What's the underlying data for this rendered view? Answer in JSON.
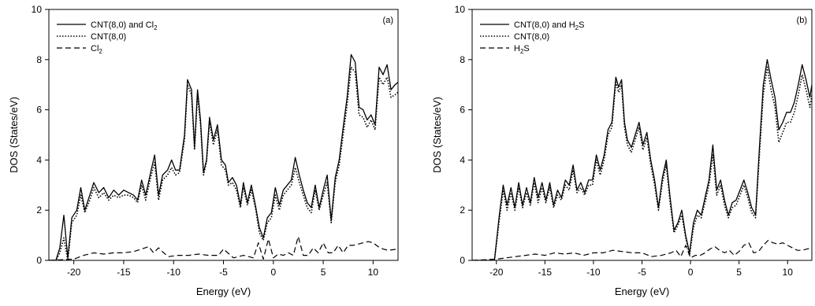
{
  "chart_data": [
    {
      "type": "line",
      "panel_tag": "(a)",
      "xlabel": "Energy (eV)",
      "ylabel": "DOS (States/eV)",
      "xlim": [
        -22.5,
        12.5
      ],
      "ylim": [
        0,
        10
      ],
      "xticks": [
        -20,
        -15,
        -10,
        -5,
        0,
        5,
        10
      ],
      "yticks": [
        0,
        2,
        4,
        6,
        8,
        10
      ],
      "legend_position": "top-left",
      "series": [
        {
          "name": "CNT(8,0) and Cl",
          "name_sub": "2",
          "style": "solid",
          "x": [
            -22.5,
            -21.8,
            -21.4,
            -21.0,
            -20.6,
            -20.2,
            -19.7,
            -19.3,
            -18.9,
            -18.4,
            -18.0,
            -17.5,
            -17.0,
            -16.5,
            -16.0,
            -15.5,
            -15.0,
            -14.5,
            -14.0,
            -13.6,
            -13.2,
            -12.8,
            -12.3,
            -11.9,
            -11.5,
            -11.1,
            -10.6,
            -10.2,
            -9.8,
            -9.4,
            -8.9,
            -8.6,
            -8.2,
            -7.9,
            -7.6,
            -7.3,
            -7.0,
            -6.7,
            -6.4,
            -6.0,
            -5.6,
            -5.2,
            -4.8,
            -4.5,
            -4.1,
            -3.7,
            -3.3,
            -3.0,
            -2.6,
            -2.2,
            -1.8,
            -1.4,
            -1.0,
            -0.6,
            -0.2,
            0.2,
            0.6,
            1.0,
            1.4,
            1.8,
            2.2,
            2.6,
            3.0,
            3.4,
            3.8,
            4.2,
            4.6,
            5.0,
            5.4,
            5.8,
            6.2,
            6.6,
            7.0,
            7.4,
            7.8,
            8.2,
            8.6,
            9.0,
            9.4,
            9.8,
            10.2,
            10.6,
            11.0,
            11.4,
            11.8,
            12.2,
            12.5
          ],
          "y": [
            0,
            0,
            0.5,
            1.8,
            0.1,
            1.7,
            2.0,
            2.9,
            2.0,
            2.6,
            3.1,
            2.7,
            2.9,
            2.5,
            2.8,
            2.6,
            2.8,
            2.7,
            2.6,
            2.4,
            3.2,
            2.6,
            3.5,
            4.2,
            2.6,
            3.4,
            3.6,
            4.0,
            3.6,
            3.6,
            5.0,
            7.2,
            6.8,
            4.5,
            6.8,
            5.6,
            3.5,
            4.0,
            5.7,
            4.8,
            5.4,
            4.0,
            3.8,
            3.1,
            3.3,
            3.0,
            2.2,
            3.1,
            2.3,
            3.0,
            2.2,
            1.3,
            0.9,
            1.7,
            1.9,
            2.9,
            2.2,
            2.8,
            3.0,
            3.2,
            4.1,
            3.4,
            2.8,
            2.3,
            2.1,
            3.0,
            2.1,
            2.8,
            3.4,
            1.6,
            3.3,
            4.0,
            5.3,
            6.5,
            8.2,
            7.9,
            6.1,
            6.0,
            5.6,
            5.8,
            5.4,
            7.7,
            7.4,
            7.8,
            6.8,
            7.0,
            7.1
          ]
        },
        {
          "name": "CNT(8,0)",
          "style": "dotted",
          "x": [
            -22.5,
            -21.8,
            -21.4,
            -21.0,
            -20.6,
            -20.2,
            -19.7,
            -19.3,
            -18.9,
            -18.4,
            -18.0,
            -17.5,
            -17.0,
            -16.5,
            -16.0,
            -15.5,
            -15.0,
            -14.5,
            -14.0,
            -13.6,
            -13.2,
            -12.8,
            -12.3,
            -11.9,
            -11.5,
            -11.1,
            -10.6,
            -10.2,
            -9.8,
            -9.4,
            -8.9,
            -8.6,
            -8.2,
            -7.9,
            -7.6,
            -7.3,
            -7.0,
            -6.7,
            -6.4,
            -6.0,
            -5.6,
            -5.2,
            -4.8,
            -4.5,
            -4.1,
            -3.7,
            -3.3,
            -3.0,
            -2.6,
            -2.2,
            -1.8,
            -1.4,
            -1.0,
            -0.6,
            -0.2,
            0.2,
            0.6,
            1.0,
            1.4,
            1.8,
            2.2,
            2.6,
            3.0,
            3.4,
            3.8,
            4.2,
            4.6,
            5.0,
            5.4,
            5.8,
            6.2,
            6.6,
            7.0,
            7.4,
            7.8,
            8.2,
            8.6,
            9.0,
            9.4,
            9.8,
            10.2,
            10.6,
            11.0,
            11.4,
            11.8,
            12.2,
            12.5
          ],
          "y": [
            0,
            0,
            0.3,
            0.9,
            0.0,
            1.5,
            1.8,
            2.6,
            1.9,
            2.4,
            2.9,
            2.5,
            2.7,
            2.4,
            2.6,
            2.5,
            2.6,
            2.6,
            2.5,
            2.3,
            3.0,
            2.4,
            3.3,
            3.9,
            2.4,
            3.2,
            3.4,
            3.7,
            3.4,
            3.5,
            4.8,
            7.0,
            6.6,
            4.4,
            6.6,
            5.4,
            3.4,
            3.9,
            5.5,
            4.6,
            5.2,
            3.8,
            3.6,
            3.0,
            3.1,
            2.8,
            2.1,
            2.9,
            2.2,
            2.8,
            2.1,
            1.1,
            0.8,
            1.5,
            1.7,
            2.6,
            2.0,
            2.6,
            2.8,
            3.0,
            3.7,
            3.1,
            2.6,
            2.1,
            1.9,
            2.8,
            2.0,
            2.6,
            3.1,
            1.5,
            3.1,
            3.8,
            5.0,
            6.2,
            7.7,
            7.5,
            5.8,
            5.7,
            5.3,
            5.6,
            5.2,
            7.3,
            7.0,
            7.3,
            6.5,
            6.6,
            6.7
          ]
        },
        {
          "name": "Cl",
          "name_sub": "2",
          "style": "dashed",
          "x": [
            -22.5,
            -20.0,
            -19.0,
            -18.0,
            -17.0,
            -16.0,
            -15.0,
            -14.0,
            -13.2,
            -12.5,
            -12.0,
            -11.5,
            -11.0,
            -10.5,
            -9.5,
            -8.5,
            -7.5,
            -6.5,
            -5.5,
            -5.0,
            -4.0,
            -3.0,
            -2.0,
            -1.5,
            -1.0,
            -0.5,
            0.0,
            0.5,
            1.0,
            1.5,
            2.0,
            2.5,
            3.0,
            3.5,
            4.0,
            4.5,
            5.0,
            5.5,
            6.0,
            6.5,
            7.0,
            7.5,
            8.0,
            8.5,
            9.0,
            9.5,
            10.0,
            10.5,
            11.0,
            11.5,
            12.5
          ],
          "y": [
            0,
            0.05,
            0.2,
            0.3,
            0.25,
            0.3,
            0.3,
            0.35,
            0.45,
            0.55,
            0.3,
            0.5,
            0.3,
            0.15,
            0.2,
            0.2,
            0.25,
            0.2,
            0.2,
            0.45,
            0.1,
            0.2,
            0.1,
            0.7,
            0.05,
            0.85,
            0.1,
            0.25,
            0.2,
            0.3,
            0.2,
            0.95,
            0.2,
            0.2,
            0.5,
            0.3,
            0.7,
            0.3,
            0.3,
            0.6,
            0.3,
            0.6,
            0.6,
            0.65,
            0.7,
            0.75,
            0.7,
            0.55,
            0.45,
            0.4,
            0.45
          ]
        }
      ]
    },
    {
      "type": "line",
      "panel_tag": "(b)",
      "xlabel": "Energy (eV)",
      "ylabel": "DOS (States/eV)",
      "xlim": [
        -22.5,
        12.5
      ],
      "ylim": [
        0,
        10
      ],
      "xticks": [
        -20,
        -15,
        -10,
        -5,
        0,
        5,
        10
      ],
      "yticks": [
        0,
        2,
        4,
        6,
        8,
        10
      ],
      "legend_position": "top-left",
      "series": [
        {
          "name": "CNT(8,0) and H",
          "name_sub": "2",
          "name_tail": "S",
          "style": "solid",
          "x": [
            -22.5,
            -20.2,
            -19.7,
            -19.3,
            -18.9,
            -18.5,
            -18.1,
            -17.7,
            -17.3,
            -16.9,
            -16.5,
            -16.1,
            -15.7,
            -15.3,
            -14.9,
            -14.5,
            -14.1,
            -13.7,
            -13.3,
            -12.9,
            -12.5,
            -12.1,
            -11.7,
            -11.3,
            -10.9,
            -10.5,
            -10.1,
            -9.7,
            -9.3,
            -8.9,
            -8.5,
            -8.1,
            -7.7,
            -7.4,
            -7.1,
            -6.8,
            -6.5,
            -6.1,
            -5.7,
            -5.3,
            -4.9,
            -4.5,
            -4.1,
            -3.7,
            -3.3,
            -2.9,
            -2.5,
            -2.1,
            -1.7,
            -1.3,
            -0.9,
            -0.5,
            -0.1,
            0.3,
            0.7,
            1.1,
            1.5,
            1.9,
            2.3,
            2.7,
            3.1,
            3.5,
            3.9,
            4.3,
            4.7,
            5.1,
            5.5,
            5.9,
            6.3,
            6.7,
            7.1,
            7.5,
            7.9,
            8.3,
            8.7,
            9.1,
            9.5,
            9.9,
            10.3,
            10.7,
            11.1,
            11.5,
            11.9,
            12.3,
            12.5
          ],
          "y": [
            0,
            0,
            1.8,
            3.0,
            2.2,
            2.9,
            2.1,
            3.1,
            2.2,
            2.9,
            2.3,
            3.3,
            2.5,
            3.1,
            2.4,
            3.1,
            2.2,
            2.8,
            2.5,
            3.2,
            3.0,
            3.8,
            2.8,
            3.1,
            2.7,
            3.2,
            3.2,
            4.2,
            3.6,
            4.2,
            5.2,
            5.5,
            7.3,
            6.9,
            7.2,
            5.5,
            4.8,
            4.5,
            5.0,
            5.5,
            4.6,
            5.1,
            4.0,
            3.2,
            2.1,
            3.3,
            4.0,
            2.5,
            1.2,
            1.5,
            2.0,
            1.0,
            0.3,
            1.5,
            2.0,
            1.8,
            2.5,
            3.2,
            4.6,
            2.8,
            3.2,
            2.4,
            1.8,
            2.3,
            2.4,
            2.8,
            3.2,
            2.7,
            2.1,
            1.8,
            4.5,
            7.0,
            8.0,
            7.2,
            6.5,
            5.2,
            5.5,
            5.9,
            5.9,
            6.3,
            7.0,
            7.8,
            7.2,
            6.5,
            7.0
          ]
        },
        {
          "name": "CNT(8,0)",
          "style": "dotted",
          "x": [
            -22.5,
            -20.2,
            -19.7,
            -19.3,
            -18.9,
            -18.5,
            -18.1,
            -17.7,
            -17.3,
            -16.9,
            -16.5,
            -16.1,
            -15.7,
            -15.3,
            -14.9,
            -14.5,
            -14.1,
            -13.7,
            -13.3,
            -12.9,
            -12.5,
            -12.1,
            -11.7,
            -11.3,
            -10.9,
            -10.5,
            -10.1,
            -9.7,
            -9.3,
            -8.9,
            -8.5,
            -8.1,
            -7.7,
            -7.4,
            -7.1,
            -6.8,
            -6.5,
            -6.1,
            -5.7,
            -5.3,
            -4.9,
            -4.5,
            -4.1,
            -3.7,
            -3.3,
            -2.9,
            -2.5,
            -2.1,
            -1.7,
            -1.3,
            -0.9,
            -0.5,
            -0.1,
            0.3,
            0.7,
            1.1,
            1.5,
            1.9,
            2.3,
            2.7,
            3.1,
            3.5,
            3.9,
            4.3,
            4.7,
            5.1,
            5.5,
            5.9,
            6.3,
            6.7,
            7.1,
            7.5,
            7.9,
            8.3,
            8.7,
            9.1,
            9.5,
            9.9,
            10.3,
            10.7,
            11.1,
            11.5,
            11.9,
            12.3,
            12.5
          ],
          "y": [
            0,
            0,
            1.6,
            2.8,
            2.0,
            2.7,
            2.0,
            2.9,
            2.1,
            2.7,
            2.2,
            3.1,
            2.3,
            2.9,
            2.3,
            2.9,
            2.1,
            2.6,
            2.4,
            3.0,
            2.8,
            3.6,
            2.7,
            2.9,
            2.6,
            3.0,
            3.0,
            4.0,
            3.4,
            4.0,
            5.0,
            5.3,
            7.1,
            6.7,
            7.0,
            5.3,
            4.6,
            4.3,
            4.8,
            5.3,
            4.4,
            4.9,
            3.8,
            3.0,
            2.0,
            3.1,
            3.8,
            2.3,
            1.1,
            1.4,
            1.8,
            0.9,
            0.2,
            1.3,
            1.8,
            1.7,
            2.3,
            3.0,
            4.2,
            2.6,
            3.0,
            2.2,
            1.7,
            2.1,
            2.2,
            2.6,
            3.0,
            2.5,
            1.9,
            1.7,
            4.2,
            6.6,
            7.7,
            6.8,
            6.1,
            4.7,
            5.1,
            5.5,
            5.5,
            5.9,
            6.6,
            7.4,
            6.8,
            6.1,
            6.6
          ]
        },
        {
          "name": "H",
          "name_sub": "2",
          "name_tail": "S",
          "style": "dashed",
          "x": [
            -22.5,
            -20.0,
            -19.0,
            -18.0,
            -17.0,
            -16.0,
            -15.0,
            -14.0,
            -13.0,
            -12.0,
            -11.0,
            -10.0,
            -9.0,
            -8.0,
            -7.0,
            -6.0,
            -5.0,
            -4.0,
            -3.0,
            -2.0,
            -1.5,
            -1.0,
            -0.5,
            0.0,
            0.5,
            1.0,
            1.5,
            2.0,
            2.5,
            3.0,
            3.5,
            4.0,
            4.5,
            5.0,
            5.5,
            6.0,
            6.5,
            7.0,
            7.5,
            8.0,
            8.5,
            9.0,
            9.5,
            10.0,
            10.5,
            11.0,
            11.5,
            12.0,
            12.5
          ],
          "y": [
            0,
            0.05,
            0.1,
            0.15,
            0.2,
            0.25,
            0.2,
            0.3,
            0.25,
            0.3,
            0.2,
            0.3,
            0.3,
            0.4,
            0.35,
            0.3,
            0.3,
            0.15,
            0.2,
            0.3,
            0.4,
            0.15,
            0.6,
            0.1,
            0.2,
            0.2,
            0.3,
            0.45,
            0.55,
            0.4,
            0.3,
            0.4,
            0.2,
            0.35,
            0.6,
            0.7,
            0.3,
            0.35,
            0.6,
            0.8,
            0.7,
            0.65,
            0.7,
            0.6,
            0.5,
            0.4,
            0.4,
            0.45,
            0.5
          ]
        }
      ]
    }
  ]
}
